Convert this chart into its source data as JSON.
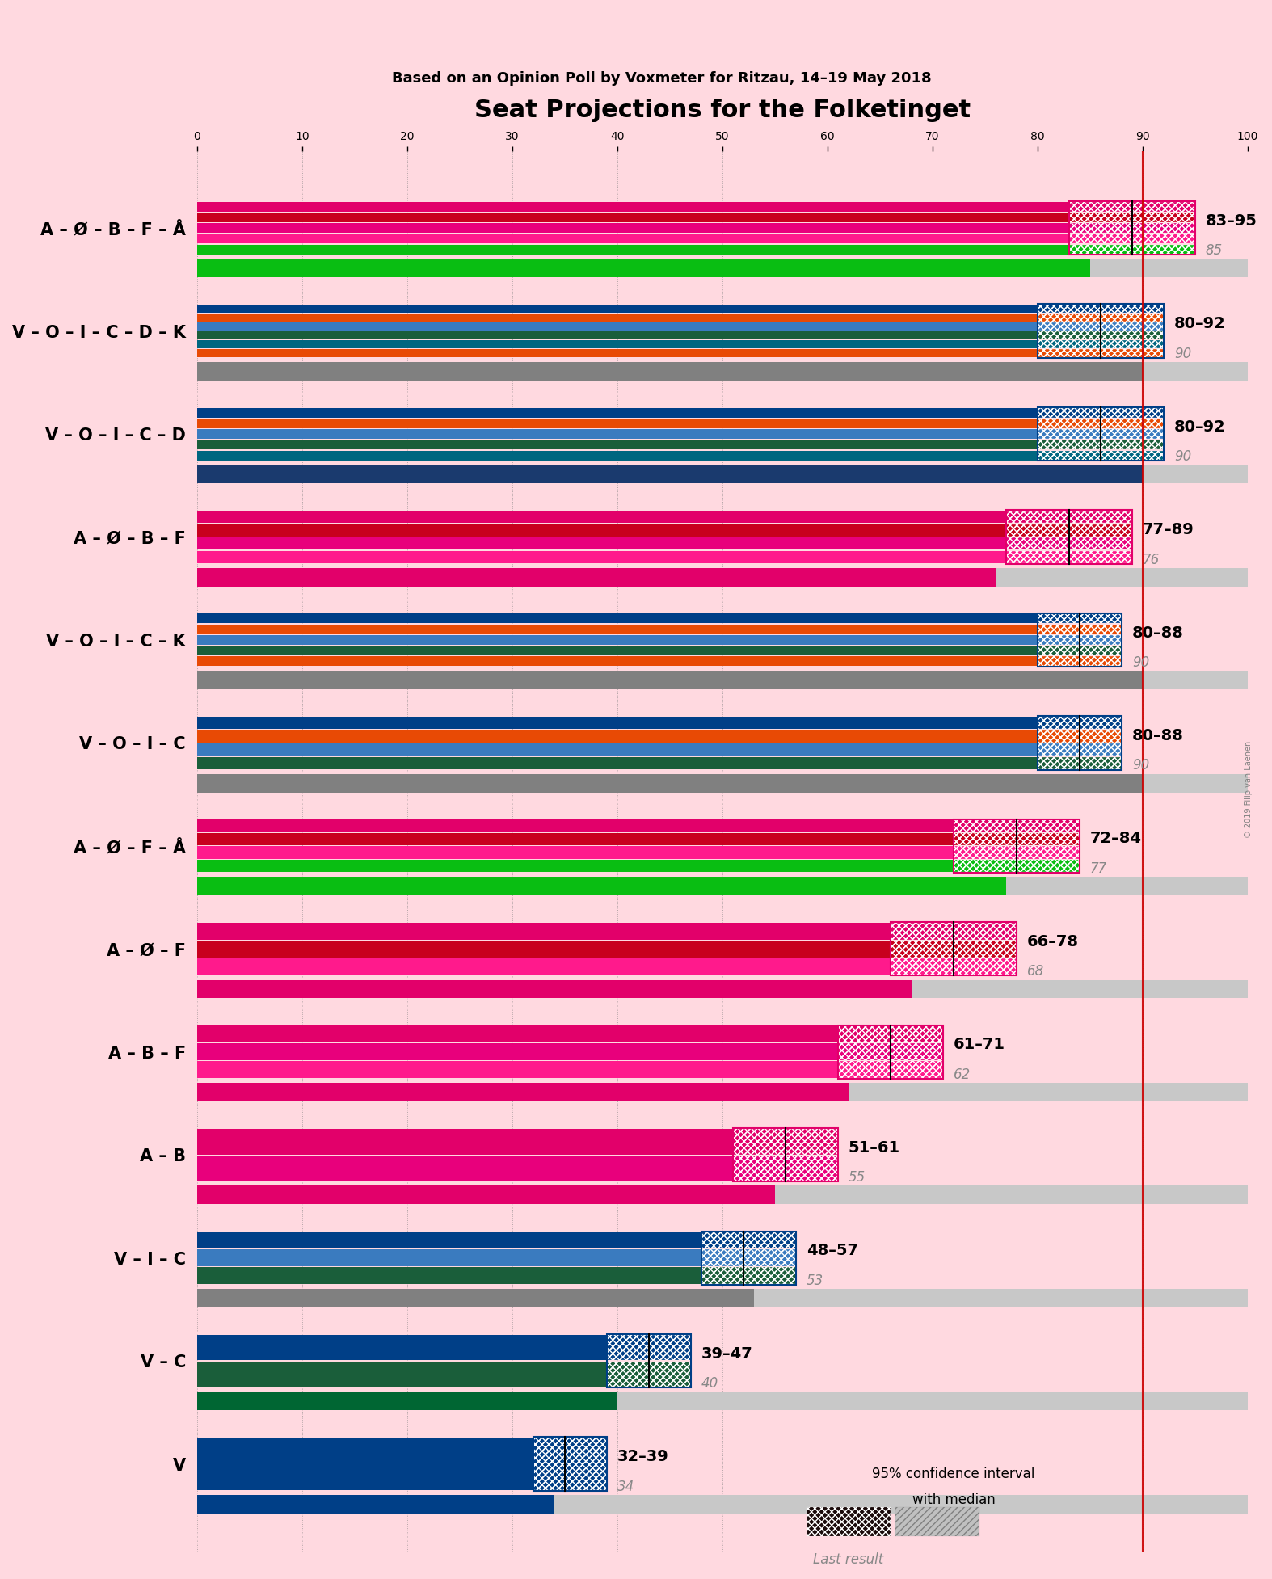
{
  "title": "Seat Projections for the Folketinget",
  "subtitle": "Based on an Opinion Poll by Voxmeter for Ritzau, 14–19 May 2018",
  "copyright": "© 2019 Filip van Laenen",
  "background_color": "#FFD9E0",
  "coalitions": [
    {
      "label": "A – Ø – B – F – Å",
      "ci_low": 83,
      "ci_high": 95,
      "median": 89,
      "last_result": 85,
      "parties": [
        "A",
        "Ø",
        "B",
        "F",
        "Å"
      ],
      "last_color": "#09BE12"
    },
    {
      "label": "V – O – I – C – D – K",
      "ci_low": 80,
      "ci_high": 92,
      "median": 86,
      "last_result": 90,
      "parties": [
        "V",
        "O",
        "I",
        "C",
        "D",
        "K"
      ],
      "last_color": "#808080"
    },
    {
      "label": "V – O – I – C – D",
      "ci_low": 80,
      "ci_high": 92,
      "median": 86,
      "last_result": 90,
      "parties": [
        "V",
        "O",
        "I",
        "C",
        "D"
      ],
      "last_color": "#1A3A6E"
    },
    {
      "label": "A – Ø – B – F",
      "ci_low": 77,
      "ci_high": 89,
      "median": 83,
      "last_result": 76,
      "parties": [
        "A",
        "Ø",
        "B",
        "F"
      ],
      "last_color": "#E2006A"
    },
    {
      "label": "V – O – I – C – K",
      "ci_low": 80,
      "ci_high": 88,
      "median": 84,
      "last_result": 90,
      "parties": [
        "V",
        "O",
        "I",
        "C",
        "K"
      ],
      "last_color": "#808080"
    },
    {
      "label": "V – O – I – C",
      "ci_low": 80,
      "ci_high": 88,
      "median": 84,
      "last_result": 90,
      "parties": [
        "V",
        "O",
        "I",
        "C"
      ],
      "last_color": "#808080"
    },
    {
      "label": "A – Ø – F – Å",
      "ci_low": 72,
      "ci_high": 84,
      "median": 78,
      "last_result": 77,
      "parties": [
        "A",
        "Ø",
        "F",
        "Å"
      ],
      "last_color": "#09BE12"
    },
    {
      "label": "A – Ø – F",
      "ci_low": 66,
      "ci_high": 78,
      "median": 72,
      "last_result": 68,
      "parties": [
        "A",
        "Ø",
        "F"
      ],
      "last_color": "#E2006A"
    },
    {
      "label": "A – B – F",
      "ci_low": 61,
      "ci_high": 71,
      "median": 66,
      "last_result": 62,
      "parties": [
        "A",
        "B",
        "F"
      ],
      "last_color": "#E2006A"
    },
    {
      "label": "A – B",
      "ci_low": 51,
      "ci_high": 61,
      "median": 56,
      "last_result": 55,
      "parties": [
        "A",
        "B"
      ],
      "last_color": "#E2006A"
    },
    {
      "label": "V – I – C",
      "ci_low": 48,
      "ci_high": 57,
      "median": 52,
      "last_result": 53,
      "parties": [
        "V",
        "I",
        "C"
      ],
      "last_color": "#808080"
    },
    {
      "label": "V – C",
      "ci_low": 39,
      "ci_high": 47,
      "median": 43,
      "last_result": 40,
      "parties": [
        "V",
        "C"
      ],
      "last_color": "#006633"
    },
    {
      "label": "V",
      "ci_low": 32,
      "ci_high": 39,
      "median": 35,
      "last_result": 34,
      "parties": [
        "V"
      ],
      "last_color": "#003F87"
    }
  ],
  "party_colors": {
    "A": "#E2006A",
    "Ø": "#C8001E",
    "B": "#E8007C",
    "F": "#FF1A8C",
    "Å": "#09BE12",
    "V": "#003F87",
    "O": "#E84A05",
    "I": "#3A7BBF",
    "C": "#1A5E3A",
    "D": "#006680",
    "K": "#E84A05"
  },
  "majority_line": 90,
  "xlim_max": 100,
  "legend_text1": "95% confidence interval",
  "legend_text2": "with median",
  "legend_last": "Last result"
}
